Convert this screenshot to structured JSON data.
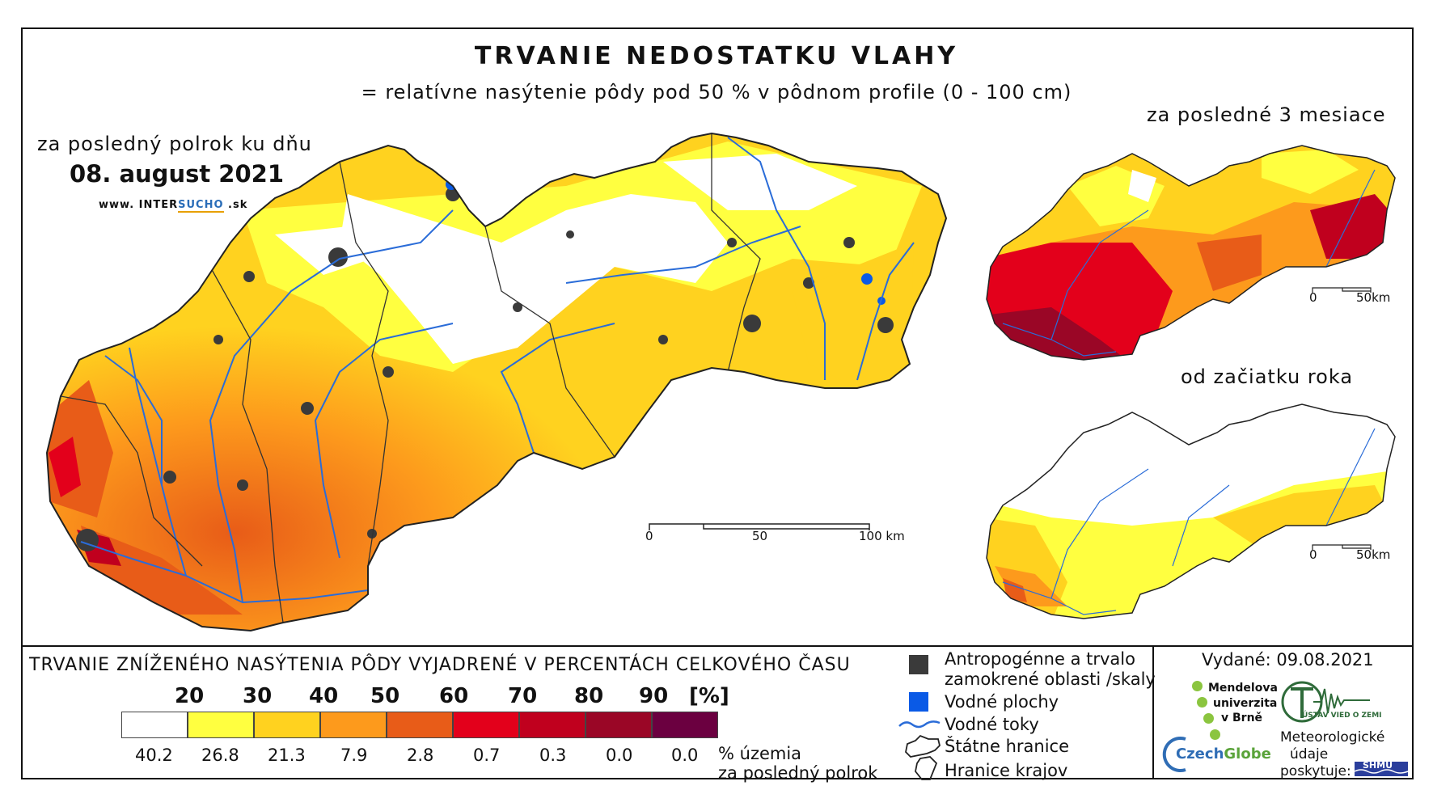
{
  "title": "TRVANIE NEDOSTATKU VLAHY",
  "subtitle": "= relatívne nasýtenie pôdy pod 50 % v pôdnom profile (0 - 100 cm)",
  "main_map": {
    "period_label": "za posledný polrok ku dňu",
    "date": "08. august 2021",
    "website_prefix": "www. INTER",
    "website_highlight": "SUCHO",
    "website_suffix": " .sk",
    "scale_labels": [
      "0",
      "50",
      "100 km"
    ]
  },
  "inset_3_months": {
    "title": "za posledné 3 mesiace",
    "scale_labels": [
      "0",
      "50km"
    ]
  },
  "inset_year": {
    "title": "od začiatku roka",
    "scale_labels": [
      "0",
      "50km"
    ]
  },
  "legend": {
    "title": "TRVANIE ZNÍŽENÉHO NASÝTENIA PÔDY VYJADRENÉ V PERCENTÁCH CELKOVÉHO ČASU",
    "bins": [
      "20",
      "30",
      "40",
      "50",
      "60",
      "70",
      "80",
      "90",
      "[%]"
    ],
    "colors": [
      "#ffffff",
      "#ffff40",
      "#ffd21f",
      "#fd9a1c",
      "#e85c18",
      "#e3001b",
      "#c0001e",
      "#9a0626",
      "#6b0040"
    ],
    "values": [
      "40.2",
      "26.8",
      "21.3",
      "7.9",
      "2.8",
      "0.7",
      "0.3",
      "0.0",
      "0.0"
    ],
    "percent_label_1": "% územia",
    "percent_label_2": "za posledný polrok"
  },
  "symbols": {
    "anthropogenic_1": "Antropogénne a trvalo",
    "anthropogenic_2": "zamokrené oblasti /skaly",
    "water_bodies": "Vodné plochy",
    "water_courses": "Vodné toky",
    "state_border": "Štátne hranice",
    "region_border": "Hranice krajov",
    "anthropogenic_color": "#3a3a3a",
    "water_color": "#0a5ae6",
    "river_color": "#2a6cd8"
  },
  "info": {
    "issued": "Vydané: 09.08.2021",
    "mendel": [
      "Mendelova",
      "univerzita",
      "v Brně"
    ],
    "czechglobe_1": "Czech",
    "czechglobe_2": "Globe",
    "uvgz": "ÚSTAV VIED O ZEMI",
    "met_1": "Meteorologické",
    "met_2": "údaje",
    "met_3": "poskytuje:",
    "shmu": "SHMÚ"
  }
}
